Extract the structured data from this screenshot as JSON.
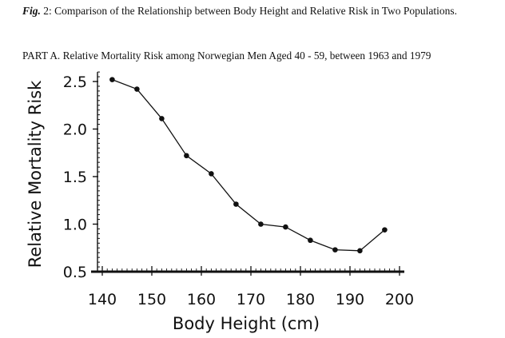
{
  "caption": {
    "fig_label": "Fig.",
    "text": " 2: Comparison of the Relationship between Body Height and Relative Risk in Two Populations."
  },
  "part_title": "PART A. Relative Mortality Risk among Norwegian Men Aged 40 - 59, between 1963 and 1979",
  "chart_data": {
    "type": "line",
    "title": "PART A. Relative Mortality Risk among Norwegian Men Aged 40 - 59, between 1963 and 1979",
    "xlabel": "Body Height (cm)",
    "ylabel": "Relative Mortality Risk",
    "xlim": [
      140,
      200
    ],
    "ylim": [
      0.5,
      2.6
    ],
    "x_ticks": [
      "140",
      "150",
      "160",
      "170",
      "180",
      "190",
      "200"
    ],
    "y_ticks": [
      "0.5",
      "1.0",
      "1.5",
      "2.0",
      "2.5"
    ],
    "grid": false,
    "series": [
      {
        "x": [
          142,
          147,
          152,
          157,
          162,
          167,
          172,
          177,
          182,
          187,
          192,
          197
        ],
        "y": [
          2.52,
          2.42,
          2.11,
          1.72,
          1.53,
          1.21,
          1.0,
          0.97,
          0.83,
          0.73,
          0.72,
          0.94
        ]
      }
    ]
  }
}
